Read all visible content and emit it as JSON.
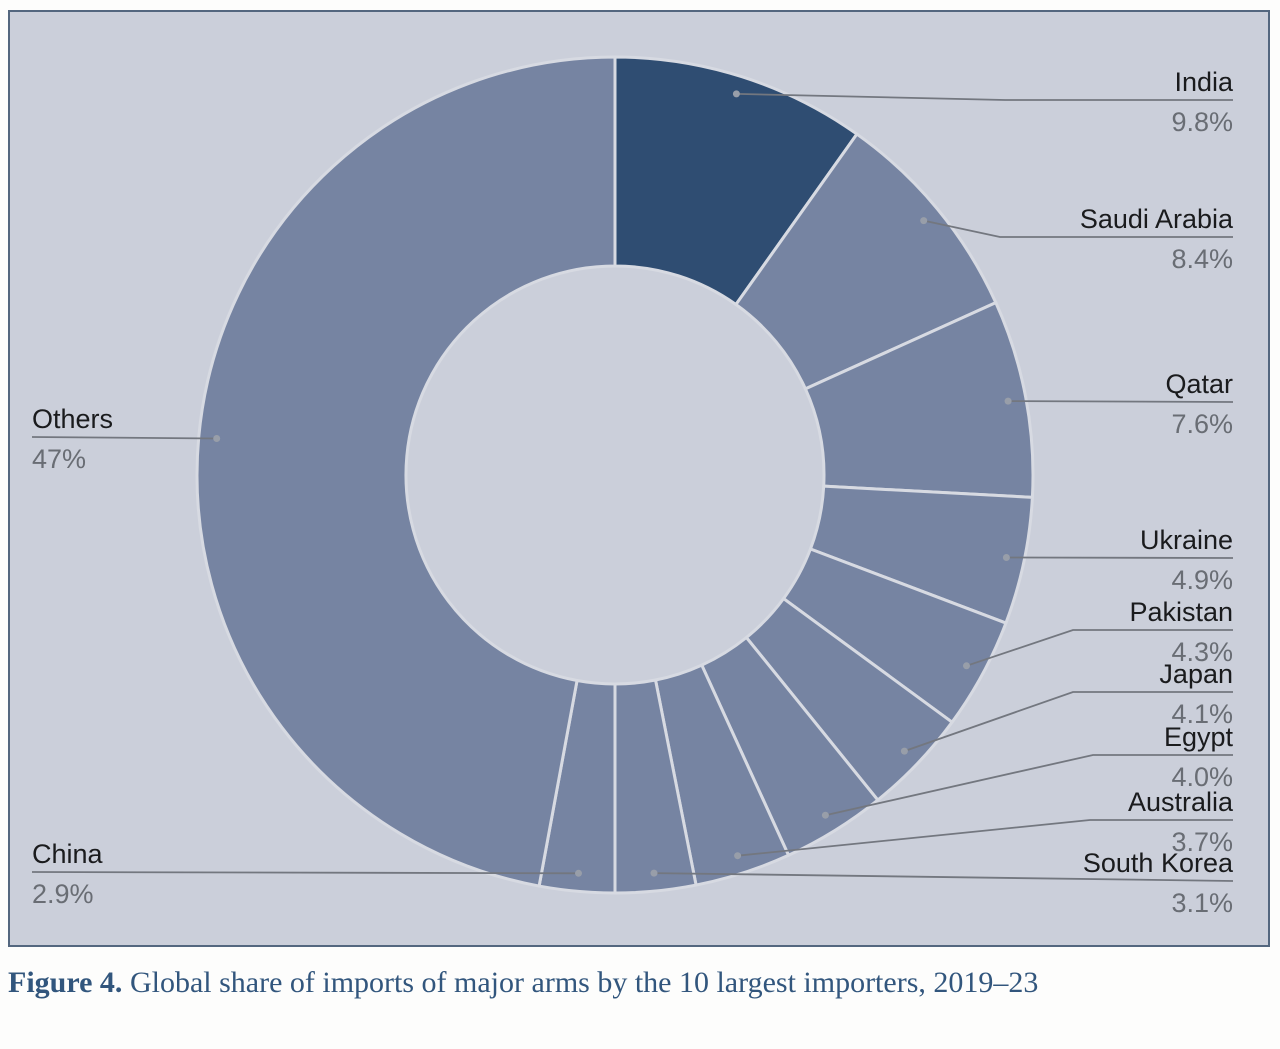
{
  "caption": {
    "label": "Figure 4.",
    "text": "Global share of imports of major arms by the 10 largest importers, 2019–23"
  },
  "chart_data": {
    "type": "pie",
    "subtype": "donut",
    "title": "Figure 4. Global share of imports of major arms by the 10 largest importers, 2019–23",
    "start_angle_deg": 0,
    "direction": "clockwise",
    "inner_radius_ratio": 0.5,
    "legend_position": "callout-labels",
    "highlight_slice": "India",
    "colors": {
      "highlight_slice": "#2f4d72",
      "other_slices": "#7684a2",
      "panel_background": "#cbcfda",
      "panel_border": "#54677f",
      "caption_text": "#32567d"
    },
    "slices": [
      {
        "label": "India",
        "value": 9.8,
        "display": "9.8%"
      },
      {
        "label": "Saudi Arabia",
        "value": 8.4,
        "display": "8.4%"
      },
      {
        "label": "Qatar",
        "value": 7.6,
        "display": "7.6%"
      },
      {
        "label": "Ukraine",
        "value": 4.9,
        "display": "4.9%"
      },
      {
        "label": "Pakistan",
        "value": 4.3,
        "display": "4.3%"
      },
      {
        "label": "Japan",
        "value": 4.1,
        "display": "4.1%"
      },
      {
        "label": "Egypt",
        "value": 4.0,
        "display": "4.0%"
      },
      {
        "label": "Australia",
        "value": 3.7,
        "display": "3.7%"
      },
      {
        "label": "South Korea",
        "value": 3.1,
        "display": "3.1%"
      },
      {
        "label": "China",
        "value": 2.9,
        "display": "2.9%"
      },
      {
        "label": "Others",
        "value": 47,
        "display": "47%"
      }
    ]
  }
}
